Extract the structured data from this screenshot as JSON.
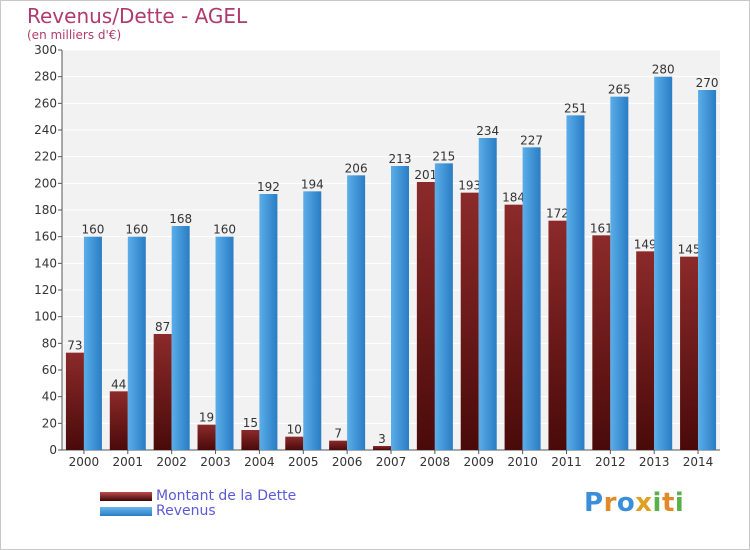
{
  "chart_data": {
    "type": "bar",
    "title": "Revenus/Dette - AGEL",
    "subtitle": "(en milliers d'€)",
    "categories": [
      "2000",
      "2001",
      "2002",
      "2003",
      "2004",
      "2005",
      "2006",
      "2007",
      "2008",
      "2009",
      "2010",
      "2011",
      "2012",
      "2013",
      "2014"
    ],
    "series": [
      {
        "name": "Montant de la Dette",
        "values": [
          73,
          44,
          87,
          19,
          15,
          10,
          7,
          3,
          201,
          193,
          184,
          172,
          161,
          149,
          145
        ],
        "labels": [
          "73",
          "44",
          "87",
          "19",
          "15",
          "10",
          "7",
          "3",
          "201",
          "193",
          "184",
          "172",
          "161",
          "149",
          "145"
        ],
        "color": "#7a1a1a"
      },
      {
        "name": "Revenus",
        "values": [
          160,
          160,
          168,
          160,
          192,
          194,
          206,
          213,
          215,
          234,
          227,
          251,
          265,
          280,
          270
        ],
        "labels": [
          "160",
          "160",
          "168",
          "160",
          "192",
          "194",
          "206",
          "213",
          "215",
          "234",
          "227",
          "251",
          "265",
          "280",
          "270"
        ],
        "color": "#3a8fd8"
      }
    ],
    "yticks": [
      "0",
      "20",
      "40",
      "60",
      "80",
      "100",
      "120",
      "140",
      "160",
      "180",
      "200",
      "220",
      "240",
      "260",
      "280",
      "300"
    ],
    "ylim": [
      0,
      300
    ],
    "grid": true,
    "legend": "bottom-left"
  },
  "legend": [
    {
      "label": "Montant de la Dette",
      "color": "#7a1a1a"
    },
    {
      "label": "Revenus",
      "color": "#3a8fd8"
    }
  ],
  "logo": {
    "text": "Proxiti"
  }
}
